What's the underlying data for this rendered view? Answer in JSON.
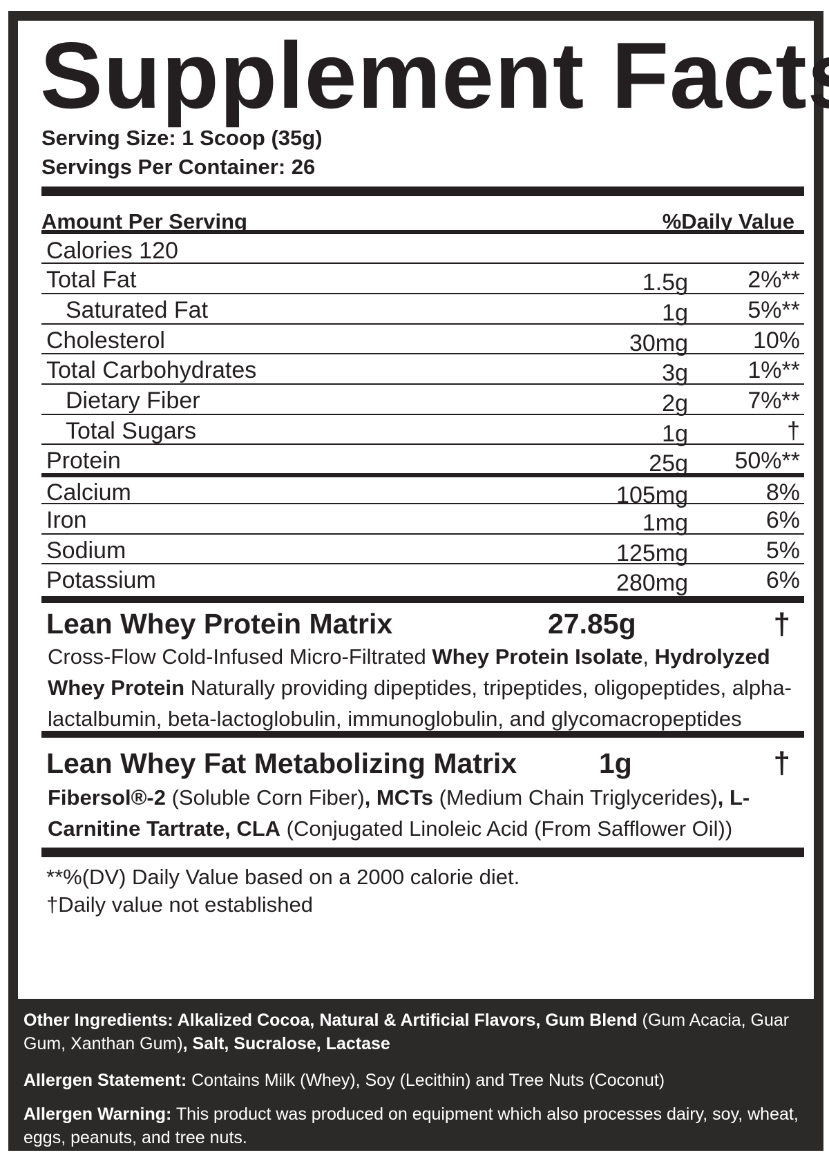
{
  "title": "Supplement Facts",
  "serving_size": "Serving Size: 1 Scoop (35g)",
  "servings_per_container": "Servings Per Container: 26",
  "header": {
    "amount_per_serving": "Amount Per Serving",
    "daily_value": "%Daily Value"
  },
  "calories": "Calories 120",
  "nutrients": [
    {
      "name": "Total Fat",
      "amount": "1.5g",
      "dv": "2%**"
    },
    {
      "name": "Saturated Fat",
      "amount": "1g",
      "dv": "5%**"
    },
    {
      "name": "Cholesterol",
      "amount": "30mg",
      "dv": "10%"
    },
    {
      "name": "Total Carbohydrates",
      "amount": "3g",
      "dv": "1%**"
    },
    {
      "name": "Dietary Fiber",
      "amount": "2g",
      "dv": "7%**"
    },
    {
      "name": "Total Sugars",
      "amount": "1g",
      "dv": "†"
    },
    {
      "name": "Protein",
      "amount": "25g",
      "dv": "50%**"
    }
  ],
  "minerals": [
    {
      "name": "Calcium",
      "amount": "105mg",
      "dv": "8%"
    },
    {
      "name": "Iron",
      "amount": "1mg",
      "dv": "6%"
    },
    {
      "name": "Sodium",
      "amount": "125mg",
      "dv": "5%"
    },
    {
      "name": "Potassium",
      "amount": "280mg",
      "dv": "6%"
    }
  ],
  "blend1": {
    "title": "Lean Whey Protein Matrix",
    "amount": "27.85g",
    "dv": "†",
    "desc": {
      "p1": "Cross-Flow Cold-Infused Micro-Filtrated ",
      "b1": "Whey Protein Isolate",
      "p2": ", ",
      "b2": "Hydrolyzed Whey Protein",
      "p3": " Naturally providing dipeptides, tripeptides, oligopeptides, alpha-lactalbumin, beta-lactoglobulin, immunoglobulin, and glycomacropeptides"
    }
  },
  "blend2": {
    "title": "Lean Whey Fat Metabolizing Matrix",
    "amount": "1g",
    "dv": "†",
    "desc": {
      "b1": "Fibersol®-2",
      "p1": " (Soluble Corn Fiber)",
      "b2": ", MCTs",
      "p2": " (Medium Chain Triglycerides)",
      "b3": ", L-Carnitine Tartrate, CLA",
      "p3": " (Conjugated Linoleic Acid (From Safflower Oil))"
    }
  },
  "footnotes": {
    "dv_note": "**%(DV) Daily Value based on a 2000 calorie diet.",
    "dagger_note": "†Daily value not established"
  },
  "other_ingredients": {
    "b1": "Other Ingredients: Alkalized Cocoa, Natural & Artificial Flavors, Gum Blend",
    "p1": " (Gum Acacia, Guar Gum, Xanthan Gum)",
    "b2": ", Salt, Sucralose, Lactase"
  },
  "allergen_statement": {
    "label": "Allergen Statement:",
    "text": " Contains Milk (Whey), Soy (Lecithin) and Tree Nuts (Coconut)"
  },
  "allergen_warning": {
    "label": "Allergen Warning:",
    "text": " This product was produced on equipment which also processes dairy, soy, wheat, eggs, peanuts, and tree nuts."
  },
  "colors": {
    "ink": "#231f20",
    "panel_dark": "#2b2a29",
    "paper": "#ffffff"
  }
}
